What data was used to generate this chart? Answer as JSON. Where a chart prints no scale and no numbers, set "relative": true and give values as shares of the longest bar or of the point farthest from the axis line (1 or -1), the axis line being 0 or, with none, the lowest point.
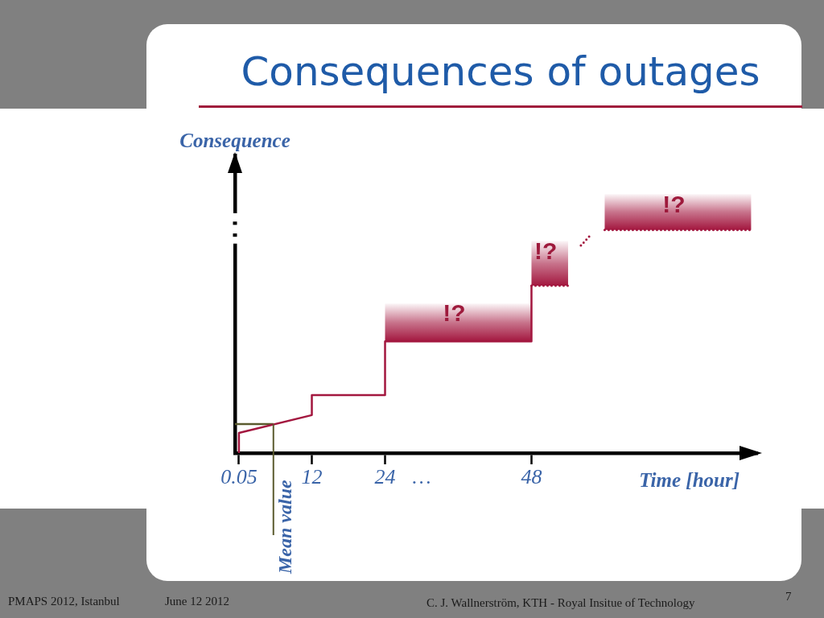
{
  "chart_data": {
    "type": "line",
    "title": "Consequences of outages",
    "xlabel": "Time [hour]",
    "ylabel": "Consequence",
    "relative": true,
    "xlim": [
      -0.6,
      85
    ],
    "xticks": [
      0.05,
      12,
      24,
      {
        "value": 30,
        "label": "…"
      },
      48
    ],
    "series": [
      {
        "color": "#a3173f",
        "line_style": "solid",
        "x": [
          0.05,
          0.05,
          12,
          12,
          24,
          24,
          48,
          48
        ],
        "values": [
          0,
          0.09,
          0.17,
          0.26,
          0.26,
          0.5,
          0.5,
          0.75
        ],
        "lower": [
          null,
          null,
          null,
          null,
          null,
          0.5,
          0.5,
          null
        ],
        "upper": [
          null,
          null,
          null,
          null,
          null,
          0.67,
          0.67,
          null
        ]
      },
      {
        "color": "#a3173f",
        "line_style": "dotted",
        "x": [
          48,
          54
        ],
        "values": [
          0.75,
          0.75
        ],
        "lower": [
          0.75,
          0.75
        ],
        "upper": [
          0.95,
          0.95
        ]
      },
      {
        "color": "#a3173f",
        "line_style": "dotted",
        "x": [
          56.1,
          57.8
        ],
        "values": [
          0.93,
          0.98
        ]
      },
      {
        "color": "#a3173f",
        "line_style": "dotted",
        "x": [
          60,
          84
        ],
        "values": [
          1,
          1
        ],
        "lower": [
          1,
          1
        ],
        "upper": [
          1.16,
          1.16
        ]
      },
      {
        "color": "#5b5b2e",
        "line_style": "solid",
        "x": [
          -0.6,
          5.7
        ],
        "values": [
          0.13,
          0.13
        ]
      }
    ],
    "ref_lines": [
      {
        "axis": "x",
        "value": 5.7,
        "label": "Mean value",
        "color": "#5b5b2e"
      }
    ],
    "annotations": [
      "!?",
      "!?",
      "!?",
      "PMAPS 2012, Istanbul",
      "June 12 2012",
      "C. J. Wallnerström, KTH - Royal Insitue of Technology",
      "7"
    ]
  }
}
